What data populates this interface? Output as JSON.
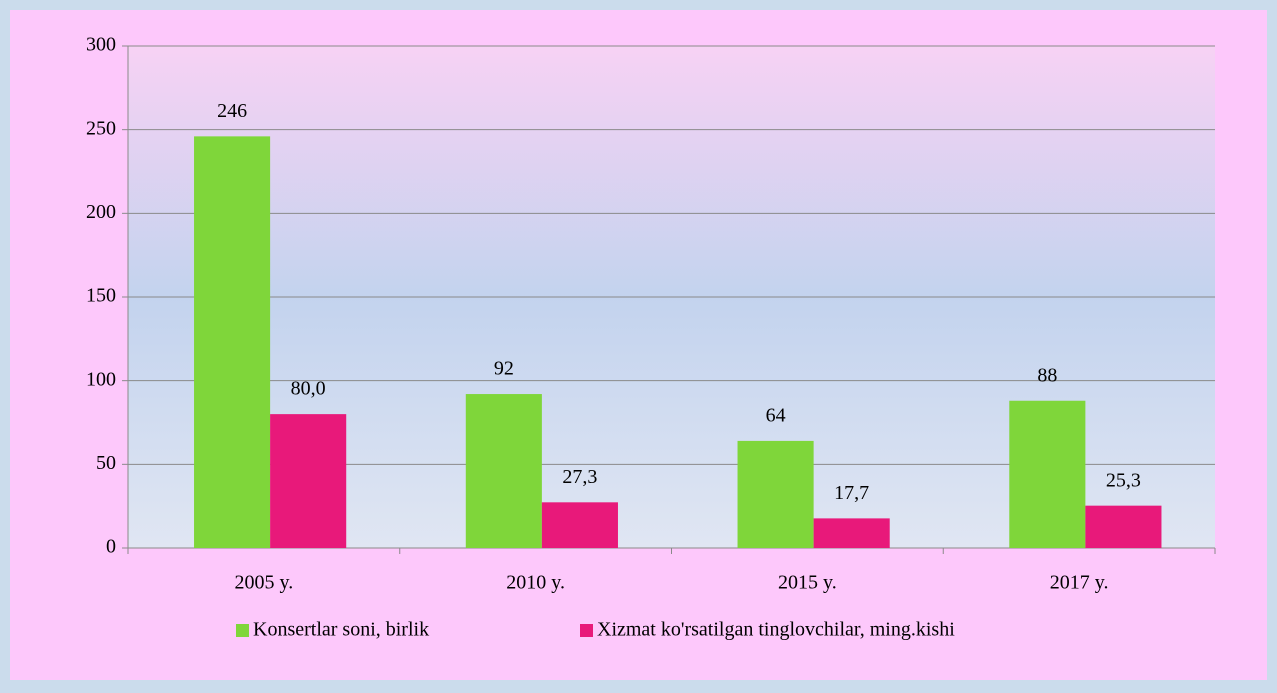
{
  "chart_data": {
    "type": "bar",
    "categories": [
      "2005 y.",
      "2010 y.",
      "2015 y.",
      "2017 y."
    ],
    "series": [
      {
        "name": "Konsertlar soni, birlik",
        "color": "#7fd63a",
        "values": [
          246,
          92,
          64,
          88
        ]
      },
      {
        "name": "Xizmat ko'rsatilgan tinglovchilar, ming.kishi",
        "color": "#e8197a",
        "values": [
          80.0,
          27.3,
          17.7,
          25.3
        ],
        "value_labels": [
          "80,0",
          "27,3",
          "17,7",
          "25,3"
        ]
      }
    ],
    "ylim": [
      0,
      300
    ],
    "yticks": [
      0,
      50,
      100,
      150,
      200,
      250,
      300
    ],
    "grid": true,
    "legend": "bottom"
  }
}
